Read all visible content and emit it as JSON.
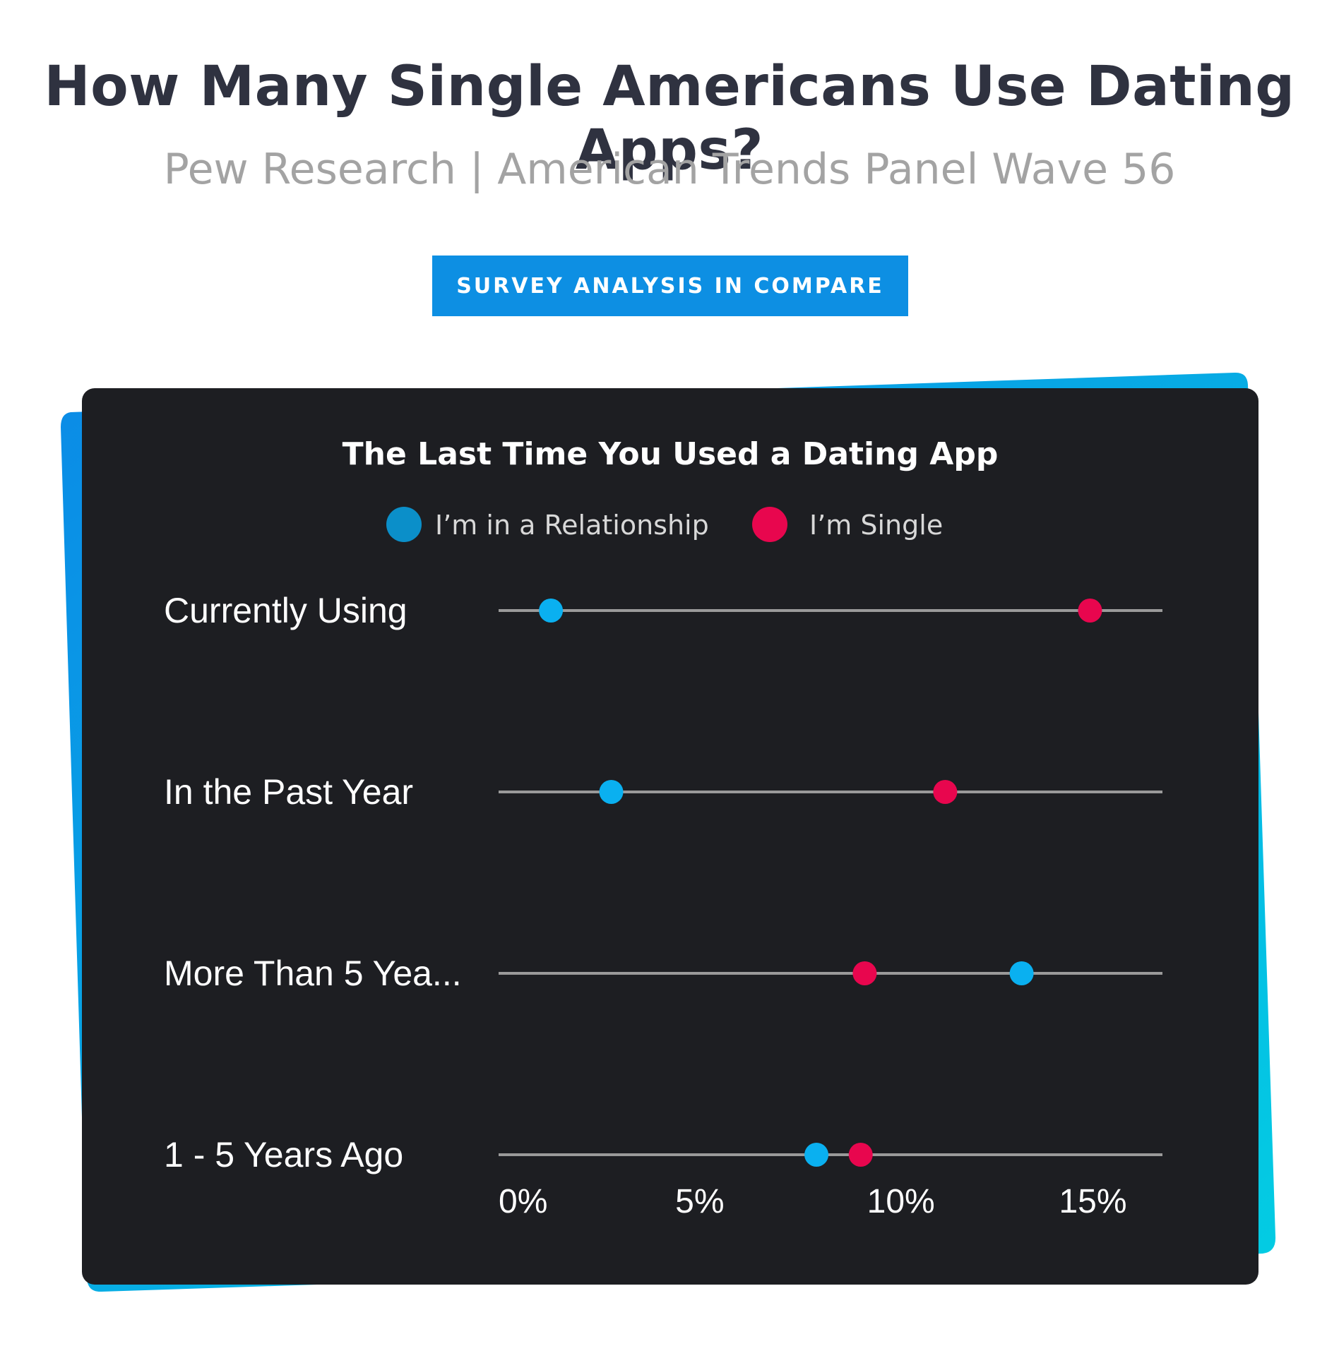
{
  "header": {
    "title": "How Many Single Americans Use Dating Apps?",
    "subtitle": "Pew Research | American Trends Panel Wave 56",
    "button_label": "SURVEY ANALYSIS IN COMPARE"
  },
  "colors": {
    "relationship": "#0ab0f0",
    "relationship_legend": "#0b8fc9",
    "single": "#e8064e",
    "card_background": "#1d1e22",
    "button": "#0d8fe3",
    "track": "#9a9a9a"
  },
  "chart_data": {
    "type": "scatter",
    "title": "The Last Time You Used a Dating App",
    "xlabel": "",
    "ylabel": "",
    "xlim": [
      0,
      16.5
    ],
    "x_ticks": [
      0,
      5,
      10,
      15
    ],
    "x_tick_labels": [
      "0%",
      "5%",
      "10%",
      "15%"
    ],
    "grid": false,
    "legend_position": "top-center",
    "categories": [
      "Currently Using",
      "In the Past Year",
      "More Than 5 Yea...",
      "1 - 5 Years Ago"
    ],
    "series": [
      {
        "name": "I’m in a Relationship",
        "values": [
          1.3,
          2.8,
          13.0,
          7.9
        ]
      },
      {
        "name": "I’m Single",
        "values": [
          14.7,
          11.1,
          9.1,
          9.0
        ]
      }
    ]
  }
}
